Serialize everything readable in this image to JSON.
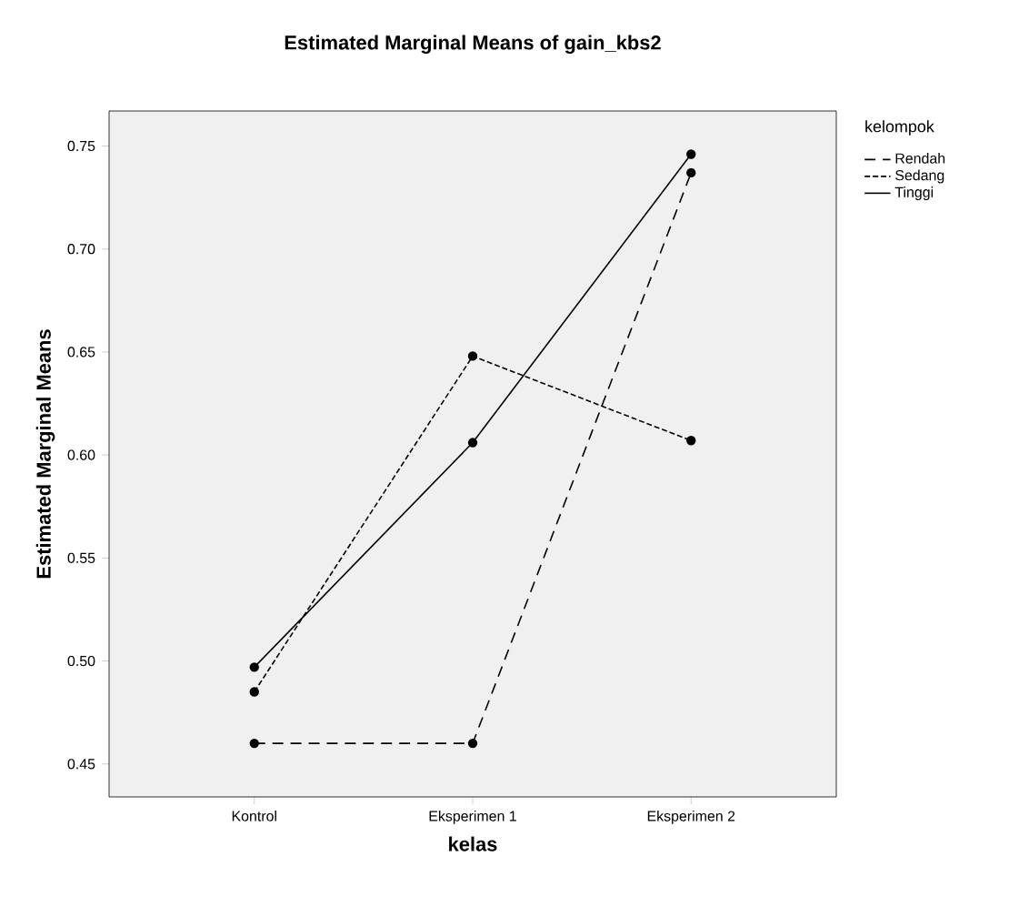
{
  "chart_data": {
    "type": "line",
    "title": "Estimated Marginal Means of gain_kbs2",
    "xlabel": "kelas",
    "ylabel": "Estimated Marginal Means",
    "legend_title": "kelompok",
    "categories": [
      "Kontrol",
      "Eksperimen 1",
      "Eksperimen 2"
    ],
    "series": [
      {
        "name": "Rendah",
        "color": "#000000",
        "line_style": "dashed",
        "values": [
          0.46,
          0.46,
          0.737
        ]
      },
      {
        "name": "Sedang",
        "color": "#000000",
        "line_style": "dotted",
        "values": [
          0.485,
          0.648,
          0.607
        ]
      },
      {
        "name": "Tinggi",
        "color": "#000000",
        "line_style": "solid",
        "values": [
          0.497,
          0.606,
          0.746
        ]
      }
    ],
    "ylim": [
      0.434,
      0.767
    ],
    "yticks": [
      0.45,
      {
        "value": 0.5,
        "label": "0.50"
      },
      0.55,
      {
        "value": 0.6,
        "label": "0.60"
      },
      0.65,
      {
        "value": 0.7,
        "label": "0.70"
      },
      0.75
    ],
    "marker": "circle",
    "legend": "top right",
    "grid": false
  }
}
